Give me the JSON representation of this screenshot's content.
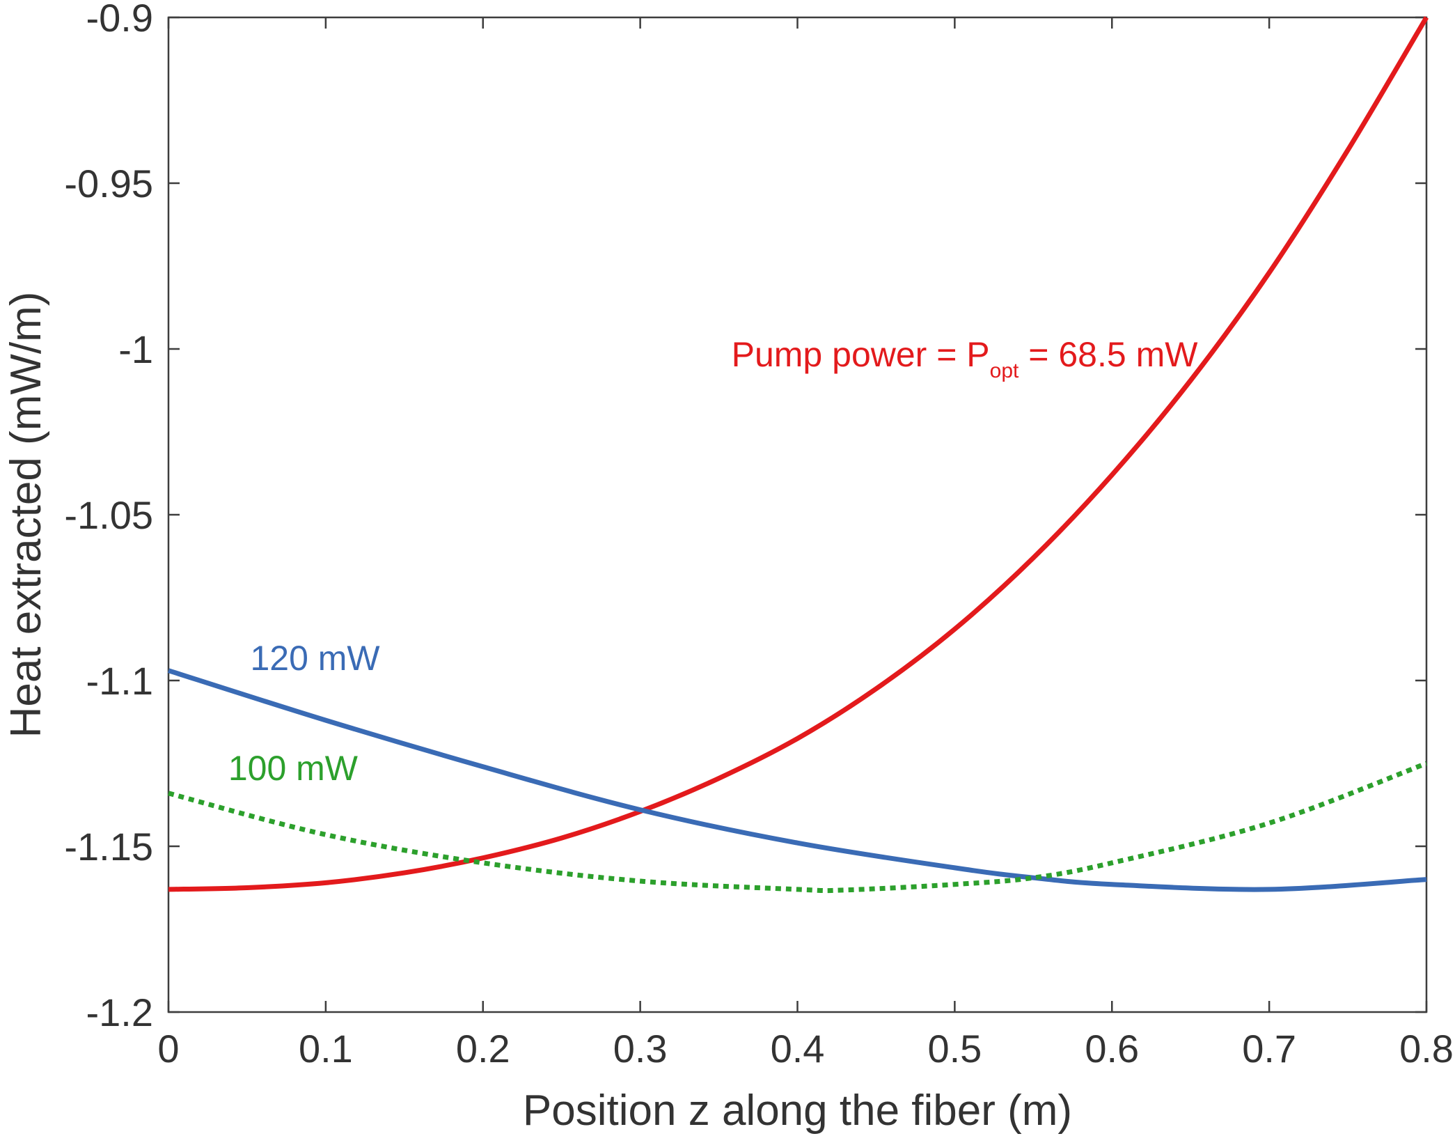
{
  "chart_data": {
    "type": "line",
    "title": "",
    "xlabel": "Position z along the fiber (m)",
    "ylabel": "Heat extracted (mW/m)",
    "xlim": [
      0,
      0.8
    ],
    "ylim": [
      -1.2,
      -0.9
    ],
    "xticks": [
      0,
      0.1,
      0.2,
      0.3,
      0.4,
      0.5,
      0.6,
      0.7,
      0.8
    ],
    "xtick_labels": [
      "0",
      "0.1",
      "0.2",
      "0.3",
      "0.4",
      "0.5",
      "0.6",
      "0.7",
      "0.8"
    ],
    "yticks": [
      -1.2,
      -1.15,
      -1.1,
      -1.05,
      -1,
      -0.95,
      -0.9
    ],
    "ytick_labels": [
      "-1.2",
      "-1.15",
      "-1.1",
      "-1.05",
      "-1",
      "-0.95",
      "-0.9"
    ],
    "grid": false,
    "series": [
      {
        "label": "Pump power = P_opt = 68.5 mW",
        "color": "#e31a1c",
        "line_style": "solid",
        "x": [
          0,
          0.05,
          0.1,
          0.15,
          0.2,
          0.25,
          0.3,
          0.35,
          0.4,
          0.45,
          0.5,
          0.55,
          0.6,
          0.65,
          0.7,
          0.75,
          0.8
        ],
        "y": [
          -1.163,
          -1.1625,
          -1.161,
          -1.158,
          -1.1535,
          -1.1475,
          -1.1395,
          -1.1295,
          -1.1175,
          -1.1025,
          -1.0845,
          -1.063,
          -1.038,
          -1.0095,
          -0.977,
          -0.94,
          -0.9
        ]
      },
      {
        "label": "120 mW",
        "color": "#3a6bb5",
        "line_style": "solid",
        "x": [
          0,
          0.1,
          0.2,
          0.3,
          0.4,
          0.5,
          0.55,
          0.6,
          0.7,
          0.8
        ],
        "y": [
          -1.097,
          -1.112,
          -1.126,
          -1.139,
          -1.149,
          -1.1565,
          -1.1595,
          -1.1615,
          -1.163,
          -1.16
        ]
      },
      {
        "label": "100 mW",
        "color": "#2ca02c",
        "line_style": "dotted",
        "x": [
          0,
          0.1,
          0.2,
          0.3,
          0.4,
          0.43,
          0.5,
          0.55,
          0.6,
          0.7,
          0.8
        ],
        "y": [
          -1.134,
          -1.1465,
          -1.155,
          -1.1605,
          -1.163,
          -1.1632,
          -1.1615,
          -1.1595,
          -1.155,
          -1.143,
          -1.125
        ]
      }
    ],
    "annotations": [
      {
        "series": 0,
        "text_main": "Pump power = P",
        "text_sub": "opt",
        "text_tail": " = 68.5 mW",
        "color": "#e31a1c"
      },
      {
        "series": 1,
        "text": "120 mW",
        "color": "#3a6bb5"
      },
      {
        "series": 2,
        "text": "100 mW",
        "color": "#2ca02c"
      }
    ]
  }
}
